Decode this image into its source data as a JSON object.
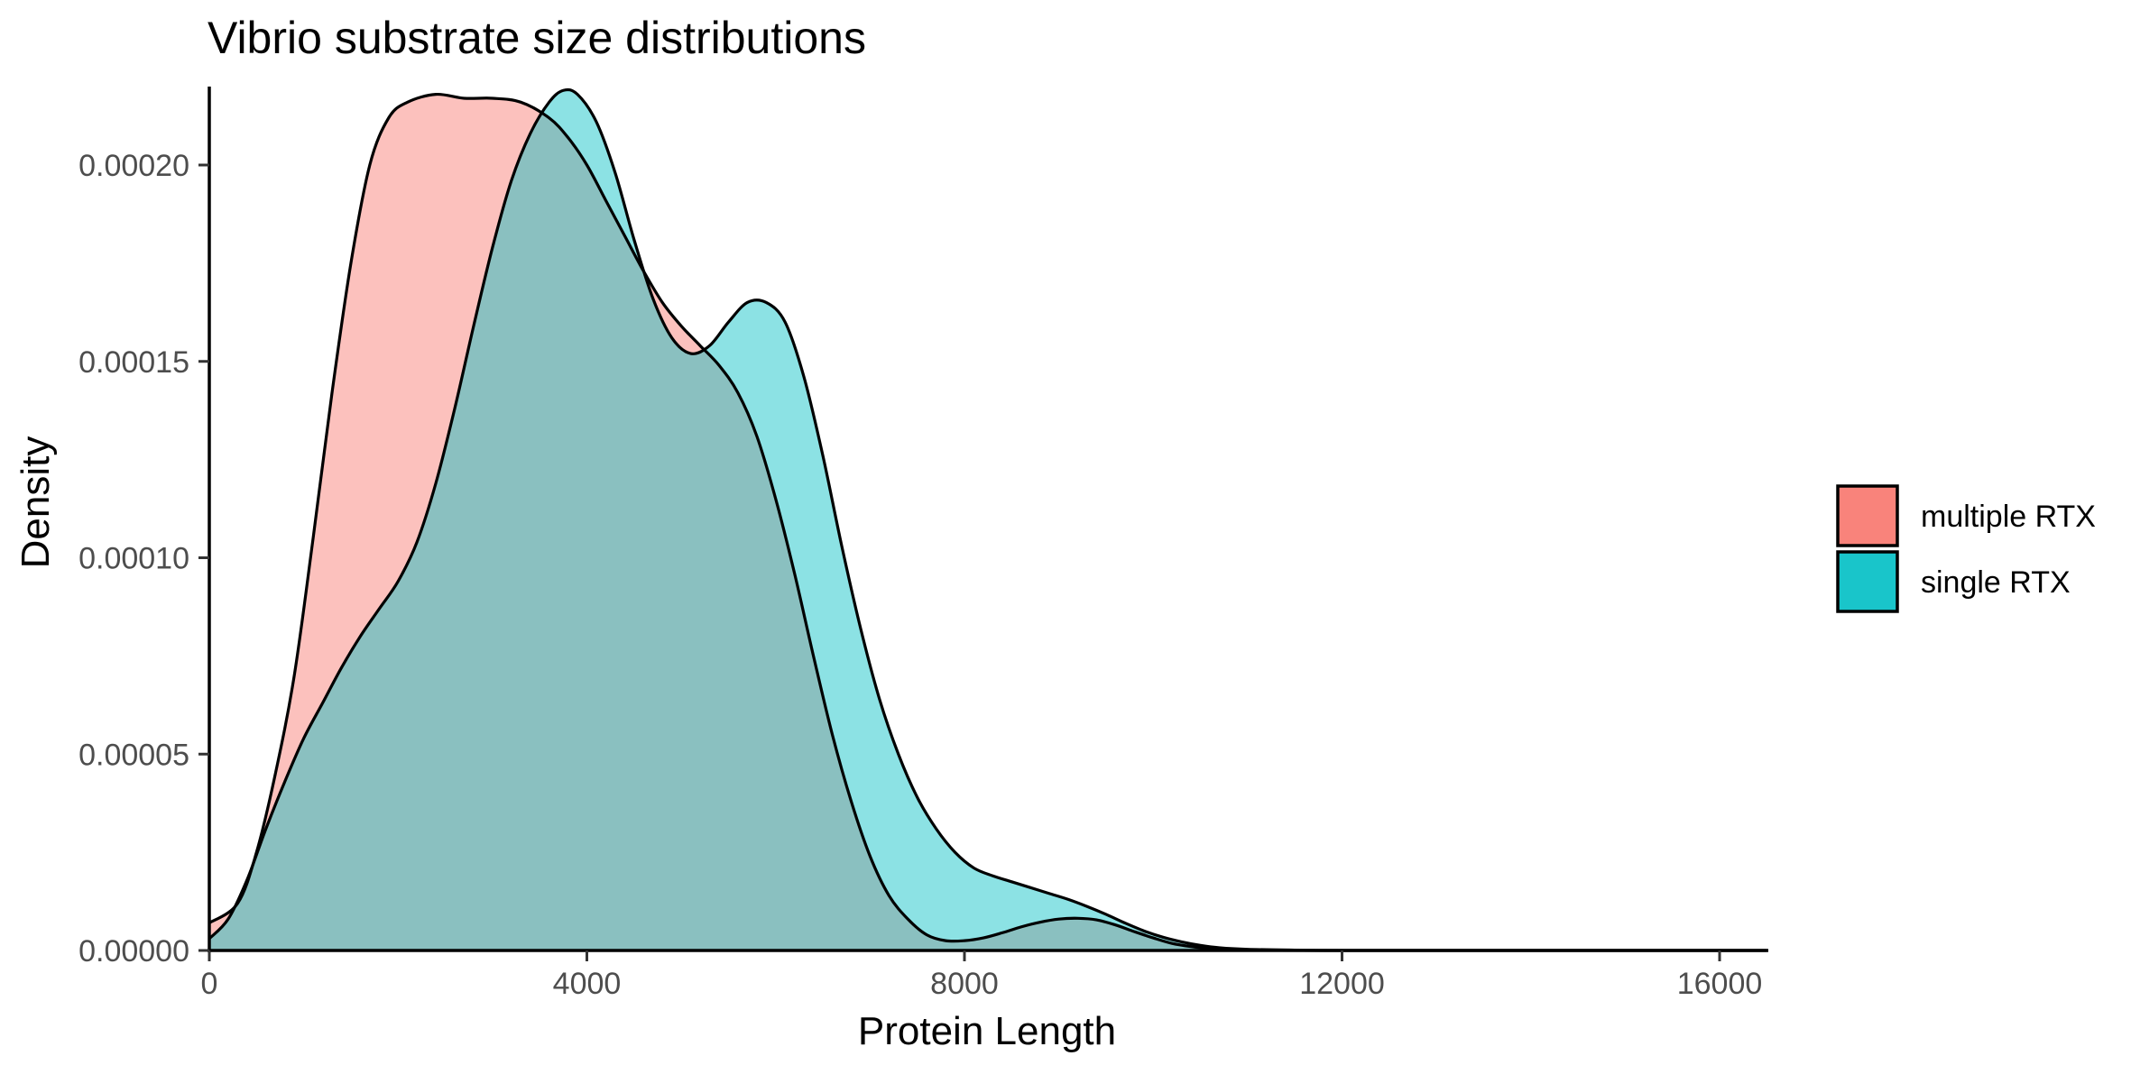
{
  "colors": {
    "multiple_rtx": "#F8766D",
    "single_rtx": "#00BFC4",
    "axis": "#000000",
    "tick_text": "#4D4D4D",
    "outline": "#000000"
  },
  "chart_data": {
    "type": "area",
    "subtype": "density",
    "title": "Vibrio substrate size distributions",
    "xlabel": "Protein Length",
    "ylabel": "Density",
    "xlim": [
      0,
      16500
    ],
    "ylim": [
      0,
      0.000221
    ],
    "x_ticks": [
      0,
      4000,
      8000,
      12000,
      16000
    ],
    "x_tick_labels": [
      "0",
      "4000",
      "8000",
      "12000",
      "16000"
    ],
    "y_ticks": [
      0,
      5e-05,
      0.0001,
      0.00015,
      0.0002
    ],
    "y_tick_labels": [
      "0.00000",
      "0.00005",
      "0.00010",
      "0.00015",
      "0.00020"
    ],
    "grid": false,
    "legend_position": "right",
    "fill_alpha": 0.45,
    "series": [
      {
        "name": "multiple RTX",
        "color": "#F8766D",
        "points": [
          [
            0,
            7e-06
          ],
          [
            300,
            1.2e-05
          ],
          [
            500,
            2.5e-05
          ],
          [
            700,
            4.5e-05
          ],
          [
            900,
            7e-05
          ],
          [
            1100,
            0.000105
          ],
          [
            1300,
            0.000142
          ],
          [
            1500,
            0.000175
          ],
          [
            1700,
            0.0002
          ],
          [
            1900,
            0.000212
          ],
          [
            2100,
            0.000216
          ],
          [
            2400,
            0.000218
          ],
          [
            2700,
            0.000217
          ],
          [
            3000,
            0.000217
          ],
          [
            3300,
            0.000216
          ],
          [
            3600,
            0.000212
          ],
          [
            3800,
            0.000207
          ],
          [
            4000,
            0.0002
          ],
          [
            4200,
            0.000191
          ],
          [
            4400,
            0.000182
          ],
          [
            4600,
            0.000173
          ],
          [
            4800,
            0.000165
          ],
          [
            5000,
            0.000159
          ],
          [
            5200,
            0.000154
          ],
          [
            5400,
            0.000149
          ],
          [
            5600,
            0.000142
          ],
          [
            5800,
            0.000131
          ],
          [
            6000,
            0.000115
          ],
          [
            6200,
            9.6e-05
          ],
          [
            6400,
            7.5e-05
          ],
          [
            6600,
            5.5e-05
          ],
          [
            6800,
            3.8e-05
          ],
          [
            7000,
            2.4e-05
          ],
          [
            7200,
            1.4e-05
          ],
          [
            7400,
            8e-06
          ],
          [
            7600,
            4e-06
          ],
          [
            7800,
            2.5e-06
          ],
          [
            8000,
            2.5e-06
          ],
          [
            8200,
            3.2e-06
          ],
          [
            8400,
            4.5e-06
          ],
          [
            8600,
            6e-06
          ],
          [
            8800,
            7.2e-06
          ],
          [
            9000,
            8e-06
          ],
          [
            9200,
            8.2e-06
          ],
          [
            9400,
            7.8e-06
          ],
          [
            9600,
            6.5e-06
          ],
          [
            9800,
            4.8e-06
          ],
          [
            10000,
            3.2e-06
          ],
          [
            10200,
            1.8e-06
          ],
          [
            10400,
            1e-06
          ],
          [
            10600,
            5e-07
          ],
          [
            10800,
            2e-07
          ],
          [
            11200,
            5e-08
          ],
          [
            12000,
            0
          ],
          [
            16000,
            0
          ]
        ]
      },
      {
        "name": "single RTX",
        "color": "#00BFC4",
        "points": [
          [
            0,
            3e-06
          ],
          [
            200,
            8e-06
          ],
          [
            400,
            1.8e-05
          ],
          [
            600,
            3.1e-05
          ],
          [
            800,
            4.3e-05
          ],
          [
            1000,
            5.4e-05
          ],
          [
            1200,
            6.3e-05
          ],
          [
            1400,
            7.2e-05
          ],
          [
            1600,
            8e-05
          ],
          [
            1800,
            8.7e-05
          ],
          [
            2000,
            9.4e-05
          ],
          [
            2200,
            0.000104
          ],
          [
            2400,
            0.000119
          ],
          [
            2600,
            0.000138
          ],
          [
            2800,
            0.000159
          ],
          [
            3000,
            0.000179
          ],
          [
            3200,
            0.000196
          ],
          [
            3400,
            0.000208
          ],
          [
            3600,
            0.000216
          ],
          [
            3750,
            0.000219
          ],
          [
            3900,
            0.000218
          ],
          [
            4100,
            0.000211
          ],
          [
            4300,
            0.000198
          ],
          [
            4500,
            0.000181
          ],
          [
            4700,
            0.000166
          ],
          [
            4900,
            0.000156
          ],
          [
            5100,
            0.000152
          ],
          [
            5300,
            0.000154
          ],
          [
            5500,
            0.00016
          ],
          [
            5700,
            0.000165
          ],
          [
            5900,
            0.000165
          ],
          [
            6100,
            0.00016
          ],
          [
            6300,
            0.000146
          ],
          [
            6500,
            0.000126
          ],
          [
            6700,
            0.000103
          ],
          [
            6900,
            8.2e-05
          ],
          [
            7100,
            6.4e-05
          ],
          [
            7300,
            5e-05
          ],
          [
            7500,
            3.9e-05
          ],
          [
            7700,
            3.1e-05
          ],
          [
            7900,
            2.5e-05
          ],
          [
            8100,
            2.1e-05
          ],
          [
            8300,
            1.9e-05
          ],
          [
            8500,
            1.75e-05
          ],
          [
            8700,
            1.6e-05
          ],
          [
            8900,
            1.45e-05
          ],
          [
            9100,
            1.3e-05
          ],
          [
            9300,
            1.12e-05
          ],
          [
            9500,
            9.2e-06
          ],
          [
            9700,
            7e-06
          ],
          [
            9900,
            5e-06
          ],
          [
            10100,
            3.4e-06
          ],
          [
            10300,
            2.2e-06
          ],
          [
            10500,
            1.3e-06
          ],
          [
            10700,
            7e-07
          ],
          [
            11000,
            3e-07
          ],
          [
            11500,
            1e-07
          ],
          [
            12000,
            0
          ],
          [
            16000,
            0
          ]
        ]
      }
    ]
  }
}
